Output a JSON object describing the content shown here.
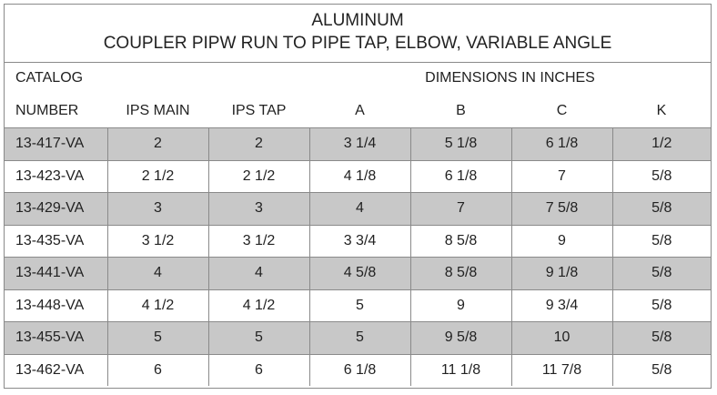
{
  "title": {
    "line1": "ALUMINUM",
    "line2": "COUPLER PIPW RUN TO PIPE TAP,  ELBOW, VARIABLE ANGLE"
  },
  "header": {
    "catalog": "CATALOG",
    "dimensions": "DIMENSIONS IN INCHES",
    "number": "NUMBER",
    "ips_main": "IPS MAIN",
    "ips_tap": "IPS TAP",
    "a": "A",
    "b": "B",
    "c": "C",
    "k": "K"
  },
  "rows": [
    {
      "number": "13-417-VA",
      "ips_main": "2",
      "ips_tap": "2",
      "a": "3 1/4",
      "b": "5 1/8",
      "c": "6 1/8",
      "k": "1/2"
    },
    {
      "number": "13-423-VA",
      "ips_main": "2 1/2",
      "ips_tap": "2 1/2",
      "a": "4 1/8",
      "b": "6 1/8",
      "c": "7",
      "k": "5/8"
    },
    {
      "number": "13-429-VA",
      "ips_main": "3",
      "ips_tap": "3",
      "a": "4",
      "b": "7",
      "c": "7 5/8",
      "k": "5/8"
    },
    {
      "number": "13-435-VA",
      "ips_main": "3 1/2",
      "ips_tap": "3 1/2",
      "a": "3 3/4",
      "b": "8 5/8",
      "c": "9",
      "k": "5/8"
    },
    {
      "number": "13-441-VA",
      "ips_main": "4",
      "ips_tap": "4",
      "a": "4 5/8",
      "b": "8 5/8",
      "c": "9 1/8",
      "k": "5/8"
    },
    {
      "number": "13-448-VA",
      "ips_main": "4 1/2",
      "ips_tap": "4 1/2",
      "a": "5",
      "b": "9",
      "c": "9 3/4",
      "k": "5/8"
    },
    {
      "number": "13-455-VA",
      "ips_main": "5",
      "ips_tap": "5",
      "a": "5",
      "b": "9 5/8",
      "c": "10",
      "k": "5/8"
    },
    {
      "number": "13-462-VA",
      "ips_main": "6",
      "ips_tap": "6",
      "a": "6 1/8",
      "b": "11 1/8",
      "c": "11 7/8",
      "k": "5/8"
    }
  ],
  "colors": {
    "shaded_row": "#c8c8c8",
    "border": "#8a8a8a"
  }
}
